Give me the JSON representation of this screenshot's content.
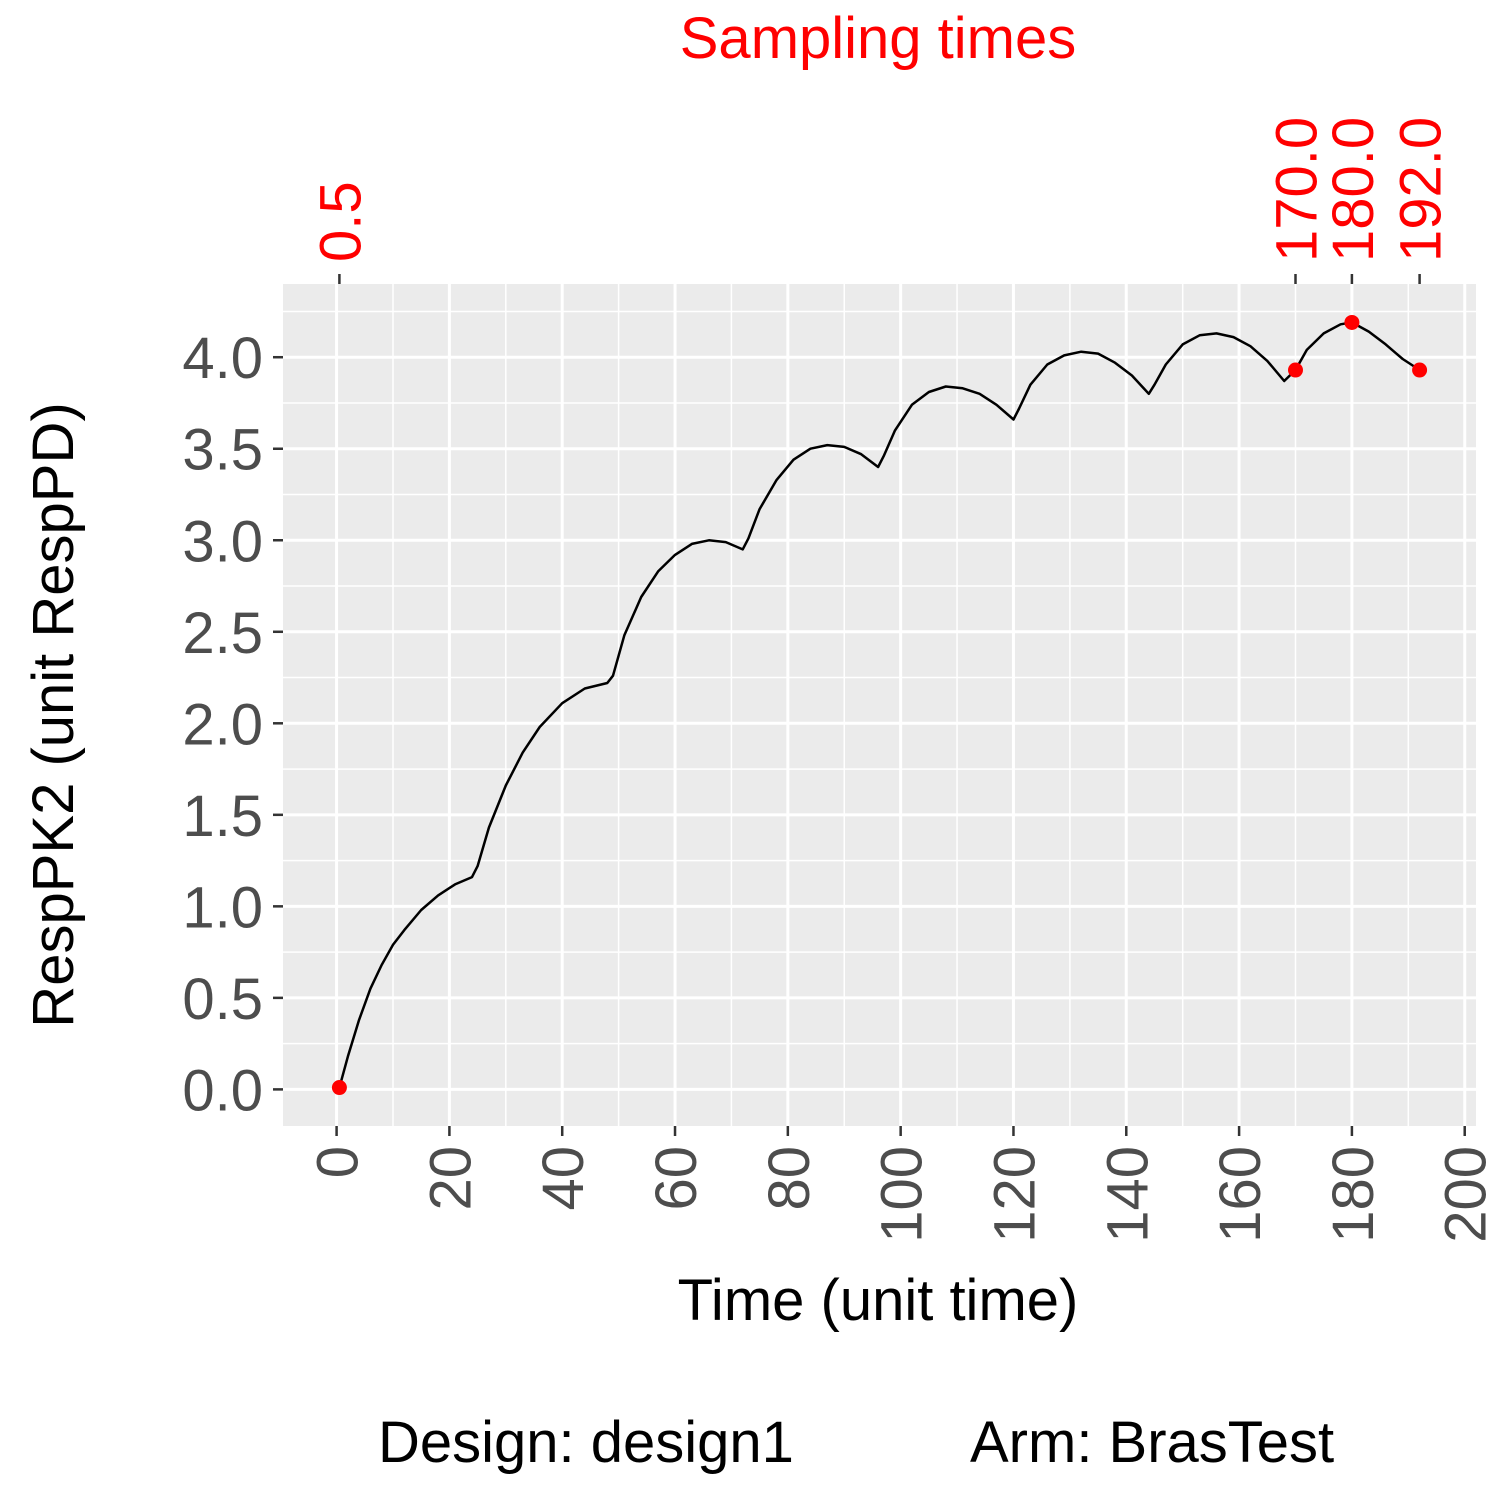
{
  "chart_data": {
    "type": "line",
    "top_title": "Sampling times",
    "xlabel": "Time (unit time)",
    "ylabel": "RespPK2 (unit RespPD)",
    "xlim": [
      -9.5,
      202
    ],
    "ylim": [
      -0.2,
      4.4
    ],
    "xticks": [
      0,
      20,
      40,
      60,
      80,
      100,
      120,
      140,
      160,
      180,
      200
    ],
    "yticks": [
      0.0,
      0.5,
      1.0,
      1.5,
      2.0,
      2.5,
      3.0,
      3.5,
      4.0
    ],
    "ytick_labels": [
      "0.0",
      "0.5",
      "1.0",
      "1.5",
      "2.0",
      "2.5",
      "3.0",
      "3.5",
      "4.0"
    ],
    "grid": true,
    "sampling_times": [
      0.5,
      170.0,
      180.0,
      192.0
    ],
    "sampling_labels": [
      "0.5",
      "170.0",
      "180.0",
      "192.0"
    ],
    "series": [
      {
        "x": [
          0.5,
          2,
          4,
          6,
          8,
          10,
          12,
          15,
          18,
          21,
          24,
          25,
          27,
          30,
          33,
          36,
          40,
          44,
          48,
          49,
          51,
          54,
          57,
          60,
          63,
          66,
          69,
          72,
          73,
          75,
          78,
          81,
          84,
          87,
          90,
          93,
          96,
          97,
          99,
          102,
          105,
          108,
          111,
          114,
          117,
          120,
          121,
          123,
          126,
          129,
          132,
          135,
          138,
          141,
          144,
          145,
          147,
          150,
          153,
          156,
          159,
          162,
          165,
          168,
          170,
          172,
          175,
          178,
          180,
          183,
          186,
          189,
          192
        ],
        "y": [
          0.01,
          0.18,
          0.38,
          0.55,
          0.68,
          0.79,
          0.87,
          0.98,
          1.06,
          1.12,
          1.16,
          1.22,
          1.43,
          1.66,
          1.84,
          1.98,
          2.11,
          2.19,
          2.22,
          2.26,
          2.48,
          2.69,
          2.83,
          2.92,
          2.98,
          3.0,
          2.99,
          2.95,
          3.01,
          3.17,
          3.33,
          3.44,
          3.5,
          3.52,
          3.51,
          3.47,
          3.4,
          3.46,
          3.6,
          3.74,
          3.81,
          3.84,
          3.83,
          3.8,
          3.74,
          3.66,
          3.72,
          3.85,
          3.96,
          4.01,
          4.03,
          4.02,
          3.97,
          3.9,
          3.8,
          3.85,
          3.96,
          4.07,
          4.12,
          4.13,
          4.11,
          4.06,
          3.98,
          3.87,
          3.93,
          4.04,
          4.13,
          4.18,
          4.19,
          4.14,
          4.07,
          3.99,
          3.93
        ]
      }
    ],
    "points": [
      {
        "x": 0.5,
        "y": 0.01
      },
      {
        "x": 170.0,
        "y": 3.93
      },
      {
        "x": 180.0,
        "y": 4.19
      },
      {
        "x": 192.0,
        "y": 3.93
      }
    ],
    "caption_design": "Design: design1",
    "caption_arm": "Arm: BrasTest",
    "colors": {
      "panel": "#ebebeb",
      "grid": "#ffffff",
      "line": "#000000",
      "points": "#ff0000",
      "sampling_text": "#ff0000",
      "tick_text": "#4d4d4d",
      "tick_mark": "#333333"
    }
  }
}
